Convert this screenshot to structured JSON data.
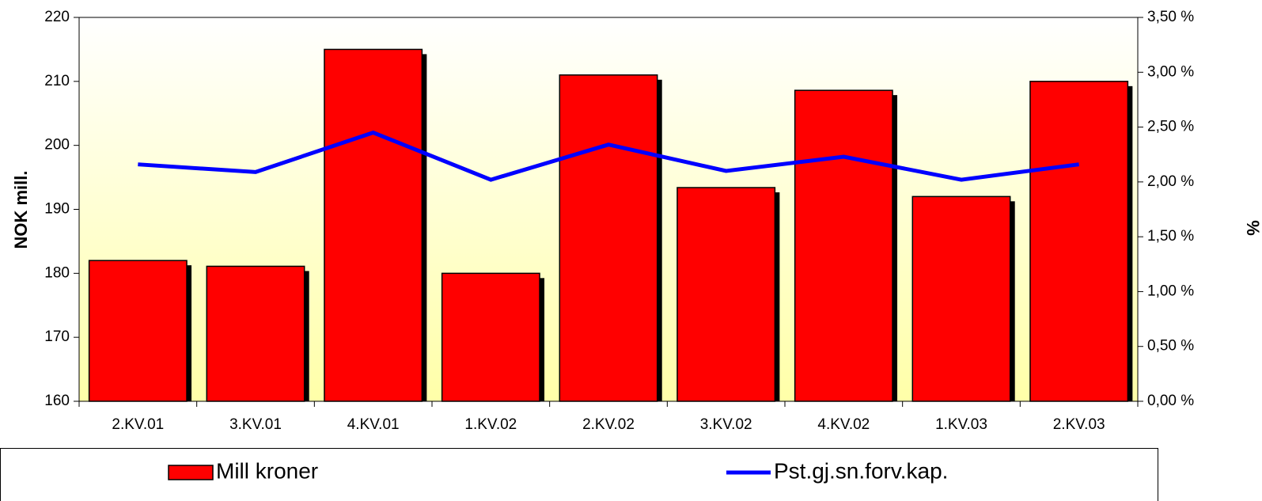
{
  "chart_data": {
    "type": "bar",
    "categories": [
      "2.KV.01",
      "3.KV.01",
      "4.KV.01",
      "1.KV.02",
      "2.KV.02",
      "3.KV.02",
      "4.KV.02",
      "1.KV.03",
      "2.KV.03"
    ],
    "series": [
      {
        "name": "Mill kroner",
        "color": "#ff0000",
        "type": "bar",
        "values": [
          182,
          181.1,
          215,
          180,
          211,
          193.4,
          208.6,
          192,
          210
        ]
      },
      {
        "name": "Pst.gj.sn.forv.kap.",
        "color": "#0000ff",
        "type": "line",
        "axis": "y2",
        "values": [
          2.16,
          2.09,
          2.45,
          2.02,
          2.34,
          2.1,
          2.23,
          2.02,
          2.16
        ]
      }
    ],
    "ylabel": "NOK mill.",
    "y2label": "%",
    "ylim": [
      160,
      220
    ],
    "yticks": [
      160,
      170,
      180,
      190,
      200,
      210,
      220
    ],
    "y2lim": [
      0,
      3.5
    ],
    "y2ticks": [
      {
        "value": 0,
        "label": "0,00 %"
      },
      {
        "value": 0.5,
        "label": "0,50 %"
      },
      {
        "value": 1,
        "label": "1,00 %"
      },
      {
        "value": 1.5,
        "label": "1,50 %"
      },
      {
        "value": 2,
        "label": "2,00 %"
      },
      {
        "value": 2.5,
        "label": "2,50 %"
      },
      {
        "value": 3,
        "label": "3,00 %"
      },
      {
        "value": 3.5,
        "label": "3,50 %"
      }
    ],
    "legend": "bottom"
  }
}
